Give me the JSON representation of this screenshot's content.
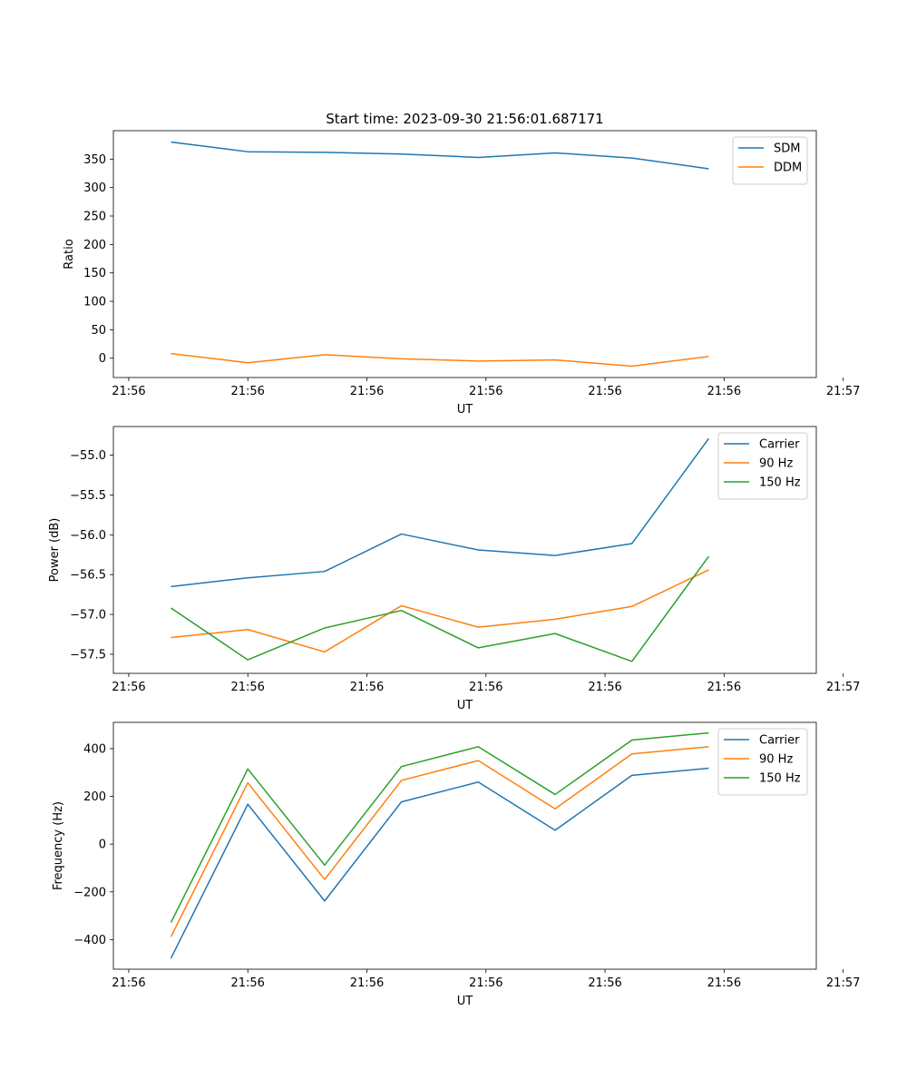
{
  "figure_title": "Start time: 2023-09-30 21:56:01.687171",
  "colors": {
    "blue": "#1f77b4",
    "orange": "#ff7f0e",
    "green": "#2ca02c"
  },
  "chart_data": [
    {
      "type": "line",
      "title": "Start time: 2023-09-30 21:56:01.687171",
      "xlabel": "UT",
      "ylabel": "Ratio",
      "x": [
        1,
        2,
        3,
        4,
        5,
        6,
        7,
        8
      ],
      "xlim": [
        0.25,
        9.4
      ],
      "xticks": [
        0.45,
        2,
        3.55,
        5.1,
        6.65,
        8.2,
        9.75
      ],
      "xtick_labels": [
        "21:56",
        "21:56",
        "21:56",
        "21:56",
        "21:56",
        "21:56",
        "21:57"
      ],
      "ylim": [
        -34,
        400
      ],
      "yticks": [
        0,
        50,
        100,
        150,
        200,
        250,
        300,
        350
      ],
      "ytick_labels": [
        "0",
        "50",
        "100",
        "150",
        "200",
        "250",
        "300",
        "350"
      ],
      "legend_position": "upper right",
      "series": [
        {
          "name": "SDM",
          "color": "#1f77b4",
          "values": [
            380,
            363,
            362,
            359,
            353,
            361,
            352,
            333
          ]
        },
        {
          "name": "DDM",
          "color": "#ff7f0e",
          "values": [
            8,
            -8,
            6,
            -1,
            -5,
            -3,
            -14,
            3
          ]
        }
      ]
    },
    {
      "type": "line",
      "title": "",
      "xlabel": "UT",
      "ylabel": "Power (dB)",
      "x": [
        1,
        2,
        3,
        4,
        5,
        6,
        7,
        8
      ],
      "xlim": [
        0.25,
        9.4
      ],
      "xticks": [
        0.45,
        2,
        3.55,
        5.1,
        6.65,
        8.2,
        9.75
      ],
      "xtick_labels": [
        "21:56",
        "21:56",
        "21:56",
        "21:56",
        "21:56",
        "21:56",
        "21:57"
      ],
      "ylim": [
        -57.74,
        -54.64
      ],
      "yticks": [
        -57.5,
        -57.0,
        -56.5,
        -56.0,
        -55.5,
        -55.0
      ],
      "ytick_labels": [
        "−57.5",
        "−57.0",
        "−56.5",
        "−56.0",
        "−55.5",
        "−55.0"
      ],
      "legend_position": "upper right",
      "series": [
        {
          "name": "Carrier",
          "color": "#1f77b4",
          "values": [
            -56.65,
            -56.54,
            -56.46,
            -55.99,
            -56.19,
            -56.26,
            -56.11,
            -54.79
          ]
        },
        {
          "name": "90 Hz",
          "color": "#ff7f0e",
          "values": [
            -57.29,
            -57.19,
            -57.47,
            -56.89,
            -57.16,
            -57.06,
            -56.9,
            -56.44
          ]
        },
        {
          "name": "150 Hz",
          "color": "#2ca02c",
          "values": [
            -56.92,
            -57.57,
            -57.17,
            -56.95,
            -57.42,
            -57.24,
            -57.59,
            -56.27
          ]
        }
      ]
    },
    {
      "type": "line",
      "title": "",
      "xlabel": "UT",
      "ylabel": "Frequency (Hz)",
      "x": [
        1,
        2,
        3,
        4,
        5,
        6,
        7,
        8
      ],
      "xlim": [
        0.25,
        9.4
      ],
      "xticks": [
        0.45,
        2,
        3.55,
        5.1,
        6.65,
        8.2,
        9.75
      ],
      "xtick_labels": [
        "21:56",
        "21:56",
        "21:56",
        "21:56",
        "21:56",
        "21:56",
        "21:57"
      ],
      "ylim": [
        -524,
        510
      ],
      "yticks": [
        -400,
        -200,
        0,
        200,
        400
      ],
      "ytick_labels": [
        "−400",
        "−200",
        "0",
        "200",
        "400"
      ],
      "legend_position": "upper right",
      "series": [
        {
          "name": "Carrier",
          "color": "#1f77b4",
          "values": [
            -478,
            167,
            -238,
            177,
            260,
            58,
            288,
            318
          ]
        },
        {
          "name": "90 Hz",
          "color": "#ff7f0e",
          "values": [
            -388,
            257,
            -148,
            267,
            350,
            148,
            378,
            408
          ]
        },
        {
          "name": "150 Hz",
          "color": "#2ca02c",
          "values": [
            -328,
            315,
            -88,
            325,
            408,
            208,
            436,
            466
          ]
        }
      ]
    }
  ]
}
